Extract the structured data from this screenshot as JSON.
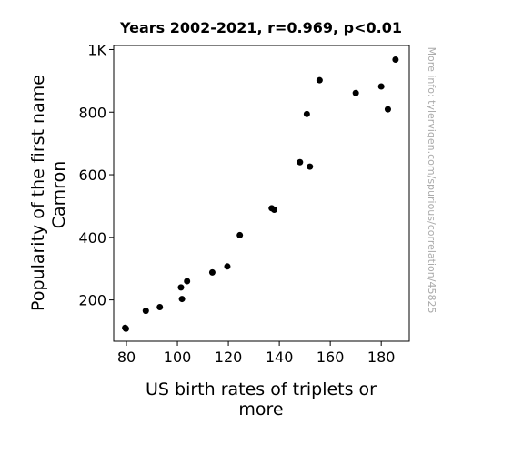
{
  "chart_data": {
    "type": "scatter",
    "title": "Years 2002-2021, r=0.969, p<0.01",
    "xlabel_lines": [
      "US birth rates of triplets or",
      "more"
    ],
    "ylabel_lines": [
      "Popularity of the first name",
      "Camron"
    ],
    "watermark": "More info: tylervigen.com/spurious/correlation/45825",
    "xlim": [
      75,
      191
    ],
    "ylim": [
      68,
      1013
    ],
    "xticks": [
      {
        "value": 80,
        "label": "80"
      },
      {
        "value": 100,
        "label": "100"
      },
      {
        "value": 120,
        "label": "120"
      },
      {
        "value": 140,
        "label": "140"
      },
      {
        "value": 160,
        "label": "160"
      },
      {
        "value": 180,
        "label": "180"
      }
    ],
    "yticks": [
      {
        "value": 200,
        "label": "200"
      },
      {
        "value": 400,
        "label": "400"
      },
      {
        "value": 600,
        "label": "600"
      },
      {
        "value": 800,
        "label": "800"
      },
      {
        "value": 1000,
        "label": "1K"
      }
    ],
    "marker_color": "#000000",
    "points": [
      {
        "x": 79.5,
        "y": 111
      },
      {
        "x": 79.8,
        "y": 108
      },
      {
        "x": 87.6,
        "y": 165
      },
      {
        "x": 93.1,
        "y": 177
      },
      {
        "x": 101.4,
        "y": 240
      },
      {
        "x": 101.8,
        "y": 203
      },
      {
        "x": 103.8,
        "y": 260
      },
      {
        "x": 113.7,
        "y": 288
      },
      {
        "x": 119.6,
        "y": 307
      },
      {
        "x": 124.5,
        "y": 407
      },
      {
        "x": 137.0,
        "y": 493
      },
      {
        "x": 138.0,
        "y": 488
      },
      {
        "x": 148.1,
        "y": 640
      },
      {
        "x": 150.8,
        "y": 794
      },
      {
        "x": 152.0,
        "y": 626
      },
      {
        "x": 155.8,
        "y": 902
      },
      {
        "x": 170.0,
        "y": 861
      },
      {
        "x": 180.0,
        "y": 882
      },
      {
        "x": 182.6,
        "y": 809
      },
      {
        "x": 185.6,
        "y": 968
      }
    ]
  }
}
